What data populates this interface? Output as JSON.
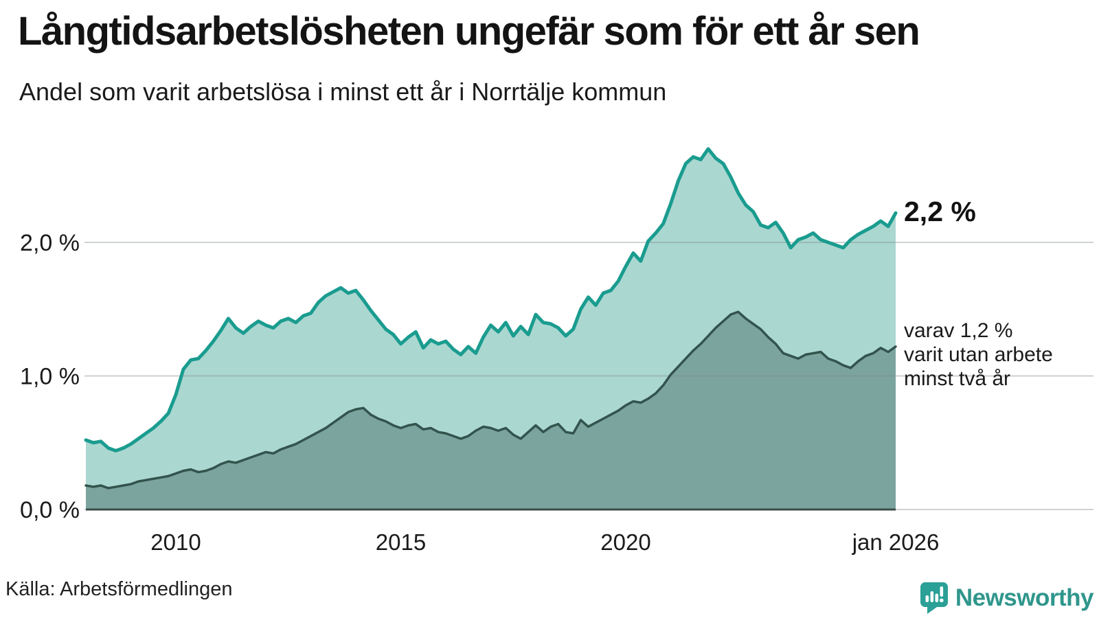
{
  "header": {
    "title": "Långtidsarbetslösheten ungefär som för ett år sen",
    "subtitle": "Andel som varit arbetslösa i minst ett år i Norrtälje kommun"
  },
  "annotations": {
    "latest_total": "2,2 %",
    "secondary_line1": "varav 1,2 %",
    "secondary_line2": "varit utan arbete",
    "secondary_line3": "minst två år"
  },
  "footer": {
    "source": "Källa: Arbetsförmedlingen",
    "brand_name": "Newsworthy"
  },
  "colors": {
    "series1_line": "#1a9c8f",
    "series1_fill": "#abd7d1",
    "series2_line": "#33534d",
    "series2_fill": "#7ba49e",
    "gridline": "#7d8a8c",
    "axis_line": "#3c4e49",
    "text": "#1a1a1a",
    "brand_teal": "#2f968c",
    "brand_icon": "#2aa096"
  },
  "chart_data": {
    "type": "area",
    "title": "Långtidsarbetslösheten ungefär som för ett år sen",
    "subtitle": "Andel som varit arbetslösa i minst ett år i Norrtälje kommun",
    "source": "Källa: Arbetsförmedlingen",
    "unit": "%",
    "grid": true,
    "legend_position": "none-direct-annotations",
    "x_start": 2008.0,
    "x_step_years": 0.1666667,
    "xlim": [
      2008.0,
      2026.0
    ],
    "ylim": [
      0,
      2.9
    ],
    "yticks": [
      {
        "v": 0,
        "label": "0,0 %"
      },
      {
        "v": 1,
        "label": "1,0 %"
      },
      {
        "v": 2,
        "label": "2,0 %"
      }
    ],
    "xticks": [
      {
        "t": 2010,
        "label": "2010"
      },
      {
        "t": 2015,
        "label": "2015"
      },
      {
        "t": 2020,
        "label": "2020"
      },
      {
        "t": 2026,
        "label": "jan 2026"
      }
    ],
    "series": [
      {
        "name": "Andel arbetslösa minst ett år",
        "end_label": "2,2 %",
        "color": "#1a9c8f",
        "fill": "#abd7d1",
        "values": [
          0.52,
          0.5,
          0.51,
          0.46,
          0.44,
          0.46,
          0.49,
          0.53,
          0.57,
          0.61,
          0.66,
          0.72,
          0.86,
          1.05,
          1.12,
          1.13,
          1.19,
          1.26,
          1.34,
          1.43,
          1.36,
          1.32,
          1.37,
          1.41,
          1.38,
          1.36,
          1.41,
          1.43,
          1.4,
          1.45,
          1.47,
          1.55,
          1.6,
          1.63,
          1.66,
          1.62,
          1.64,
          1.57,
          1.49,
          1.42,
          1.35,
          1.31,
          1.24,
          1.29,
          1.33,
          1.21,
          1.27,
          1.24,
          1.26,
          1.2,
          1.16,
          1.22,
          1.17,
          1.29,
          1.38,
          1.33,
          1.4,
          1.3,
          1.37,
          1.31,
          1.46,
          1.4,
          1.39,
          1.36,
          1.3,
          1.35,
          1.5,
          1.59,
          1.53,
          1.62,
          1.64,
          1.71,
          1.82,
          1.92,
          1.86,
          2.01,
          2.07,
          2.14,
          2.29,
          2.46,
          2.59,
          2.64,
          2.62,
          2.7,
          2.63,
          2.59,
          2.49,
          2.37,
          2.28,
          2.23,
          2.13,
          2.11,
          2.15,
          2.07,
          1.96,
          2.02,
          2.04,
          2.07,
          2.02,
          2.0,
          1.98,
          1.96,
          2.02,
          2.06,
          2.09,
          2.12,
          2.16,
          2.12,
          2.22
        ]
      },
      {
        "name": "varav utan arbete minst två år",
        "end_label": "varav 1,2 % varit utan arbete minst två år",
        "color": "#33534d",
        "fill": "#7ba49e",
        "values": [
          0.18,
          0.17,
          0.18,
          0.16,
          0.17,
          0.18,
          0.19,
          0.21,
          0.22,
          0.23,
          0.24,
          0.25,
          0.27,
          0.29,
          0.3,
          0.28,
          0.29,
          0.31,
          0.34,
          0.36,
          0.35,
          0.37,
          0.39,
          0.41,
          0.43,
          0.42,
          0.45,
          0.47,
          0.49,
          0.52,
          0.55,
          0.58,
          0.61,
          0.65,
          0.69,
          0.73,
          0.75,
          0.76,
          0.71,
          0.68,
          0.66,
          0.63,
          0.61,
          0.63,
          0.64,
          0.6,
          0.61,
          0.58,
          0.57,
          0.55,
          0.53,
          0.55,
          0.59,
          0.62,
          0.61,
          0.59,
          0.61,
          0.56,
          0.53,
          0.58,
          0.63,
          0.58,
          0.62,
          0.64,
          0.58,
          0.57,
          0.67,
          0.62,
          0.65,
          0.68,
          0.71,
          0.74,
          0.78,
          0.81,
          0.8,
          0.83,
          0.87,
          0.93,
          1.01,
          1.07,
          1.13,
          1.19,
          1.24,
          1.3,
          1.36,
          1.41,
          1.46,
          1.48,
          1.43,
          1.39,
          1.35,
          1.29,
          1.24,
          1.17,
          1.15,
          1.13,
          1.16,
          1.17,
          1.18,
          1.13,
          1.11,
          1.08,
          1.06,
          1.11,
          1.15,
          1.17,
          1.21,
          1.18,
          1.22
        ]
      }
    ]
  }
}
